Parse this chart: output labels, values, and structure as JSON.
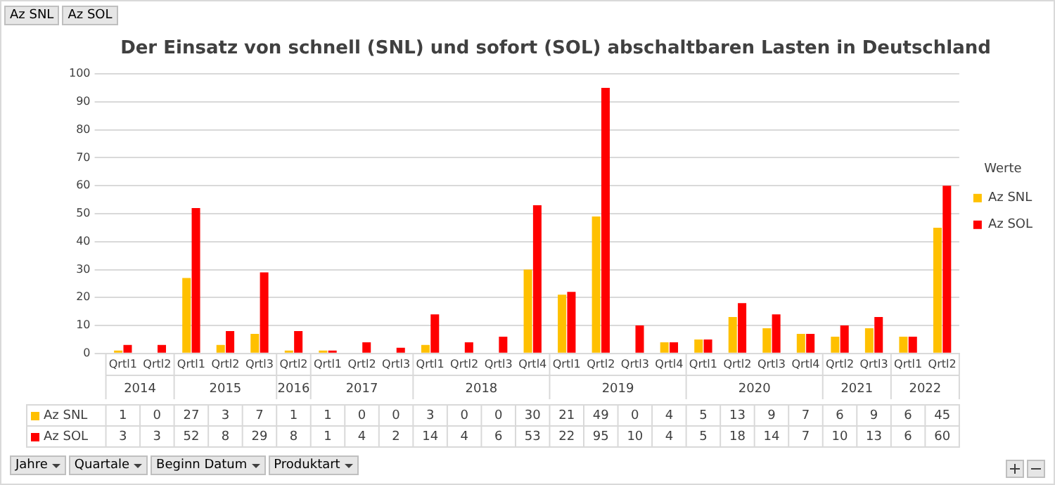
{
  "chart_data": {
    "type": "bar",
    "title": "Der Einsatz von schnell (SNL) und sofort (SOL) abschaltbaren Lasten in Deutschland",
    "categories": [
      "Qrtl1",
      "Qrtl2",
      "Qrtl1",
      "Qrtl2",
      "Qrtl3",
      "Qrtl2",
      "Qrtl1",
      "Qrtl2",
      "Qrtl3",
      "Qrtl1",
      "Qrtl2",
      "Qrtl3",
      "Qrtl4",
      "Qrtl1",
      "Qrtl2",
      "Qrtl3",
      "Qrtl4",
      "Qrtl1",
      "Qrtl2",
      "Qrtl3",
      "Qrtl4",
      "Qrtl2",
      "Qrtl3",
      "Qrtl1",
      "Qrtl2"
    ],
    "series": [
      {
        "name": "Az SNL",
        "color": "#ffc000",
        "values": [
          1,
          0,
          27,
          3,
          7,
          1,
          1,
          0,
          0,
          3,
          0,
          0,
          30,
          21,
          49,
          0,
          4,
          5,
          13,
          9,
          7,
          6,
          9,
          6,
          45
        ]
      },
      {
        "name": "Az SOL",
        "color": "#ff0000",
        "values": [
          3,
          3,
          52,
          8,
          29,
          8,
          1,
          4,
          2,
          14,
          4,
          6,
          53,
          22,
          95,
          10,
          4,
          5,
          18,
          14,
          7,
          10,
          13,
          6,
          60
        ]
      }
    ],
    "ylim": [
      0,
      100
    ],
    "yticks": [
      0,
      10,
      20,
      30,
      40,
      50,
      60,
      70,
      80,
      90,
      100
    ],
    "grid": "y",
    "legend": "right",
    "legend_title": "Werte",
    "data_labels": true,
    "annotations": [
      "2014",
      "2015",
      "2016",
      "2017",
      "2018",
      "2019",
      "2020",
      "2021",
      "2022",
      "Jahre",
      "Quartale",
      "Beginn Datum",
      "Produktart"
    ]
  }
}
